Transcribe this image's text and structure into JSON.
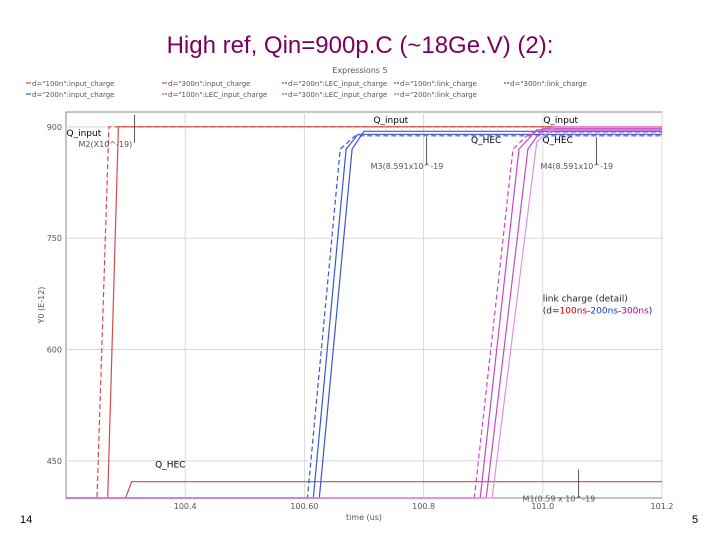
{
  "slide": {
    "title": "High ref, Qin=900p.C (~18Ge.V) (2):",
    "page_left": "14",
    "page_right": "5"
  },
  "chart_data": {
    "type": "line",
    "title": "Expressions 5",
    "xlabel": "time (us)",
    "ylabel": "Y0 (E-12)",
    "xlim": [
      100.2,
      101.2
    ],
    "ylim": [
      400,
      920
    ],
    "x_ticks": [
      {
        "value": 100.4,
        "label": "100.4"
      },
      {
        "value": 100.6,
        "label": "100.60"
      },
      {
        "value": 100.8,
        "label": "100.8"
      },
      {
        "value": 101.0,
        "label": "101.0"
      },
      {
        "value": 101.2,
        "label": "101.2"
      }
    ],
    "y_ticks": [
      {
        "value": 900,
        "label": "900"
      },
      {
        "value": 750,
        "label": "750"
      },
      {
        "value": 600,
        "label": "600"
      },
      {
        "value": 450,
        "label": "450"
      }
    ],
    "grid": true,
    "legend_position": "top",
    "legend": [
      {
        "text": "d=\"100n\":input_charge",
        "color": "#d44a4a",
        "dash": "solid"
      },
      {
        "text": "d=\"200n\":input_charge",
        "color": "#3a55d4",
        "dash": "solid"
      },
      {
        "text": "d=\"300n\":input_charge",
        "color": "#cc44cc",
        "dash": "solid"
      },
      {
        "text": "d=\"100n\":LEC_input_charge",
        "color": "#d44a4a",
        "dash": "dashed"
      },
      {
        "text": "d=\"200n\":LEC_input_charge",
        "color": "#3a55d4",
        "dash": "dashed"
      },
      {
        "text": "d=\"300n\":LEC_input_charge",
        "color": "#d44a4a",
        "dash": "dashed"
      },
      {
        "text": "d=\"100n\":link_charge",
        "color": "#3a55d4",
        "dash": "dashed"
      },
      {
        "text": "d=\"200n\":link_charge",
        "color": "#cc44cc",
        "dash": "dashed"
      },
      {
        "text": "d=\"300n\":link_charge",
        "color": "#3a55d4",
        "dash": "dashed"
      }
    ],
    "series": [
      {
        "color": "#d44a4a",
        "dash": "solid",
        "x": [
          100.2,
          100.27,
          100.288,
          101.2
        ],
        "y": [
          400,
          400,
          900,
          900
        ]
      },
      {
        "color": "#d44a4a",
        "dash": "dashed",
        "x": [
          100.2,
          100.252,
          100.272,
          101.2
        ],
        "y": [
          400,
          400,
          900,
          900
        ]
      },
      {
        "color": "#d44a4a",
        "dash": "solid",
        "x": [
          100.2,
          100.3,
          100.31,
          101.2
        ],
        "y": [
          400,
          400,
          422,
          422
        ]
      },
      {
        "color": "#3a55d4",
        "dash": "solid",
        "x": [
          100.2,
          100.615,
          100.67,
          100.69,
          101.2
        ],
        "y": [
          400,
          400,
          870,
          890,
          890
        ]
      },
      {
        "color": "#3a55d4",
        "dash": "solid",
        "x": [
          100.2,
          100.625,
          100.68,
          100.7,
          101.2
        ],
        "y": [
          400,
          400,
          870,
          894,
          894
        ]
      },
      {
        "color": "#3a55d4",
        "dash": "dashed",
        "x": [
          100.2,
          100.605,
          100.66,
          100.685,
          101.2
        ],
        "y": [
          400,
          400,
          870,
          888,
          888
        ]
      },
      {
        "color": "#cc44cc",
        "dash": "solid",
        "x": [
          100.2,
          100.895,
          100.96,
          100.99,
          101.2
        ],
        "y": [
          400,
          400,
          870,
          896,
          896
        ]
      },
      {
        "color": "#cc44cc",
        "dash": "solid",
        "x": [
          100.2,
          100.905,
          100.975,
          101.0,
          101.2
        ],
        "y": [
          400,
          400,
          870,
          898,
          898
        ]
      },
      {
        "color": "#cc44cc",
        "dash": "dashed",
        "x": [
          100.2,
          100.885,
          100.95,
          100.98,
          101.2
        ],
        "y": [
          400,
          400,
          870,
          893,
          893
        ]
      },
      {
        "color": "#e090e0",
        "dash": "solid",
        "x": [
          100.2,
          100.915,
          100.99,
          101.02,
          101.2
        ],
        "y": [
          400,
          400,
          880,
          900,
          900
        ]
      }
    ],
    "markers": [
      {
        "text": "M2(X10^-19)",
        "x": 100.315,
        "y": 900
      },
      {
        "text": "M3(8.591x10^-19",
        "x": 100.805,
        "y": 870
      },
      {
        "text": "M4(8.591x10^-19",
        "x": 101.09,
        "y": 870
      },
      {
        "text": "M1(0.59 x 10^-19",
        "x": 101.06,
        "y": 422
      }
    ],
    "annotations": [
      {
        "text": "Q_input",
        "x": 100.745,
        "y": 905,
        "color": "#000000"
      },
      {
        "text": "Q_input",
        "x": 101.03,
        "y": 905,
        "color": "#000000"
      },
      {
        "text": "Q_input",
        "x": 100.23,
        "y": 888,
        "color": "#000000"
      },
      {
        "text": "Q_HEC",
        "x": 100.905,
        "y": 878,
        "color": "#000000"
      },
      {
        "text": "Q_HEC",
        "x": 101.025,
        "y": 878,
        "color": "#000000"
      },
      {
        "text": "Q_HEC",
        "x": 100.375,
        "y": 441,
        "color": "#000000"
      }
    ],
    "note": {
      "line1": "link charge (detail)",
      "line2_prefix": "(d=",
      "values": [
        {
          "text": "100ns",
          "color": "#c00000"
        },
        {
          "text": "200ns",
          "color": "#1f3ac4"
        },
        {
          "text": "300ns",
          "color": "#b000b0"
        }
      ],
      "separator": "-",
      "line2_suffix": ")",
      "x": 101.0,
      "y": 665
    }
  }
}
